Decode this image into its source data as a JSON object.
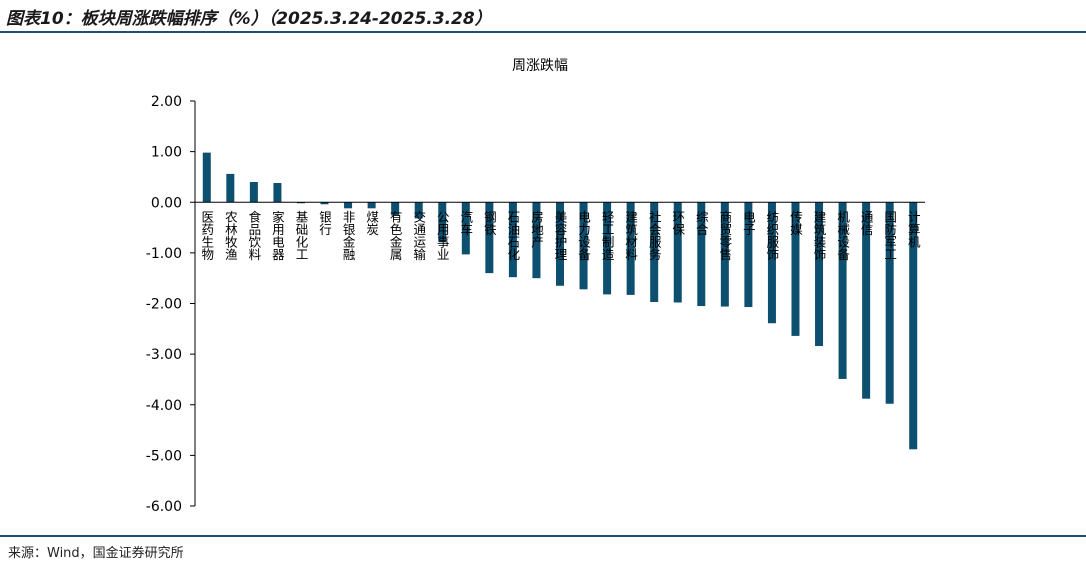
{
  "header": {
    "title": "图表10：板块周涨跌幅排序（%）（2025.3.24-2025.3.28）"
  },
  "footer": {
    "source": "来源：Wind，国金证券研究所"
  },
  "colors": {
    "bar": "#0d4f6e",
    "rule": "#1f4e6e"
  },
  "chart_data": {
    "type": "bar",
    "title": "周涨跌幅",
    "xlabel": "",
    "ylabel": "",
    "ylim": [
      -6,
      2
    ],
    "yticks": [
      "2.00",
      "1.00",
      "0.00",
      "-1.00",
      "-2.00",
      "-3.00",
      "-4.00",
      "-5.00",
      "-6.00"
    ],
    "grid": false,
    "legend": "none",
    "categories": [
      "医药生物",
      "农林牧渔",
      "食品饮料",
      "家用电器",
      "基础化工",
      "银行",
      "非银金融",
      "煤炭",
      "有色金属",
      "交通运输",
      "公用事业",
      "汽车",
      "钢铁",
      "石油石化",
      "房地产",
      "美容护理",
      "电力设备",
      "轻工制造",
      "建筑材料",
      "社会服务",
      "环保",
      "综合",
      "商贸零售",
      "电子",
      "纺织服饰",
      "传媒",
      "建筑装饰",
      "机械设备",
      "通信",
      "国防军工",
      "计算机"
    ],
    "values": [
      0.98,
      0.56,
      0.4,
      0.38,
      -0.02,
      -0.04,
      -0.12,
      -0.12,
      -0.26,
      -0.32,
      -0.78,
      -1.03,
      -1.4,
      -1.48,
      -1.5,
      -1.65,
      -1.72,
      -1.82,
      -1.83,
      -1.97,
      -1.98,
      -2.05,
      -2.06,
      -2.07,
      -2.39,
      -2.64,
      -2.84,
      -3.49,
      -3.88,
      -3.98,
      -4.88
    ]
  }
}
